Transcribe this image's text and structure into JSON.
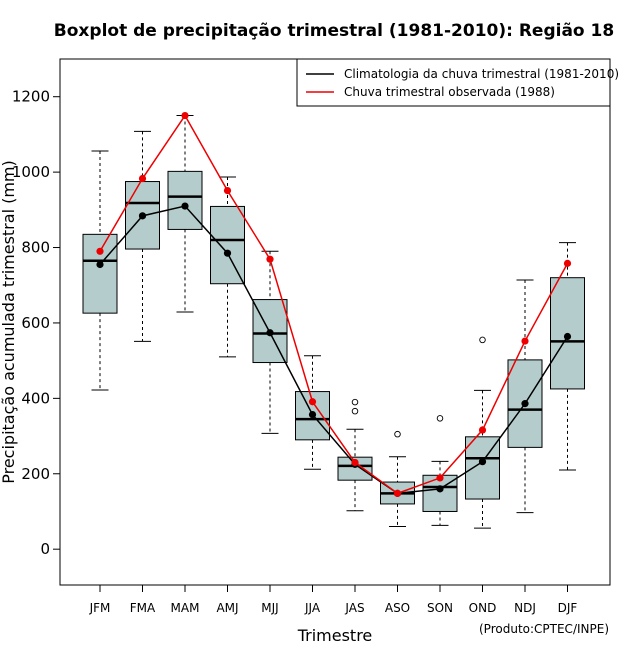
{
  "chart_data": {
    "type": "boxplot",
    "title": "Boxplot de precipitação trimestral (1981-2010): Região 18",
    "xlabel": "Trimestre",
    "ylabel": "Precipitação acumulada trimestral (mm)",
    "credit": "(Produto:CPTEC/INPE)",
    "ylim": [
      -95,
      1300
    ],
    "yticks": [
      0,
      200,
      400,
      600,
      800,
      1000,
      1200
    ],
    "ytick_labels": [
      "0",
      "200",
      "400",
      "600",
      "800",
      "1000",
      "1200"
    ],
    "categories": [
      "JFM",
      "FMA",
      "MAM",
      "AMJ",
      "MJJ",
      "JJA",
      "JAS",
      "ASO",
      "SON",
      "OND",
      "NDJ",
      "DJF"
    ],
    "boxes": [
      {
        "whisker_low": 422,
        "q1": 626,
        "median": 765,
        "q3": 835,
        "whisker_high": 1056,
        "outliers": []
      },
      {
        "whisker_low": 551,
        "q1": 796,
        "median": 918,
        "q3": 975,
        "whisker_high": 1108,
        "outliers": []
      },
      {
        "whisker_low": 629,
        "q1": 848,
        "median": 935,
        "q3": 1002,
        "whisker_high": 1150,
        "outliers": []
      },
      {
        "whisker_low": 510,
        "q1": 704,
        "median": 820,
        "q3": 909,
        "whisker_high": 987,
        "outliers": []
      },
      {
        "whisker_low": 307,
        "q1": 495,
        "median": 572,
        "q3": 662,
        "whisker_high": 790,
        "outliers": []
      },
      {
        "whisker_low": 212,
        "q1": 290,
        "median": 345,
        "q3": 418,
        "whisker_high": 513,
        "outliers": []
      },
      {
        "whisker_low": 102,
        "q1": 183,
        "median": 221,
        "q3": 244,
        "whisker_high": 318,
        "outliers": [
          366,
          390
        ]
      },
      {
        "whisker_low": 60,
        "q1": 120,
        "median": 148,
        "q3": 178,
        "whisker_high": 245,
        "outliers": [
          305
        ]
      },
      {
        "whisker_low": 63,
        "q1": 100,
        "median": 165,
        "q3": 196,
        "whisker_high": 233,
        "outliers": [
          347
        ]
      },
      {
        "whisker_low": 56,
        "q1": 133,
        "median": 241,
        "q3": 298,
        "whisker_high": 421,
        "outliers": [
          555
        ]
      },
      {
        "whisker_low": 97,
        "q1": 270,
        "median": 370,
        "q3": 502,
        "whisker_high": 714,
        "outliers": []
      },
      {
        "whisker_low": 210,
        "q1": 425,
        "median": 551,
        "q3": 720,
        "whisker_high": 813,
        "outliers": []
      }
    ],
    "series": [
      {
        "name": "Climatologia da chuva trimestral (1981-2010)",
        "color": "#000000",
        "values": [
          755,
          884,
          910,
          785,
          574,
          357,
          225,
          148,
          160,
          232,
          386,
          564
        ]
      },
      {
        "name": "Chuva trimestral observada (1988)",
        "color": "#ee0000",
        "values": [
          790,
          983,
          1150,
          951,
          769,
          391,
          230,
          148,
          189,
          316,
          552,
          758
        ]
      }
    ],
    "legend_position": "top-right",
    "box_fill": "#b4cccc"
  }
}
